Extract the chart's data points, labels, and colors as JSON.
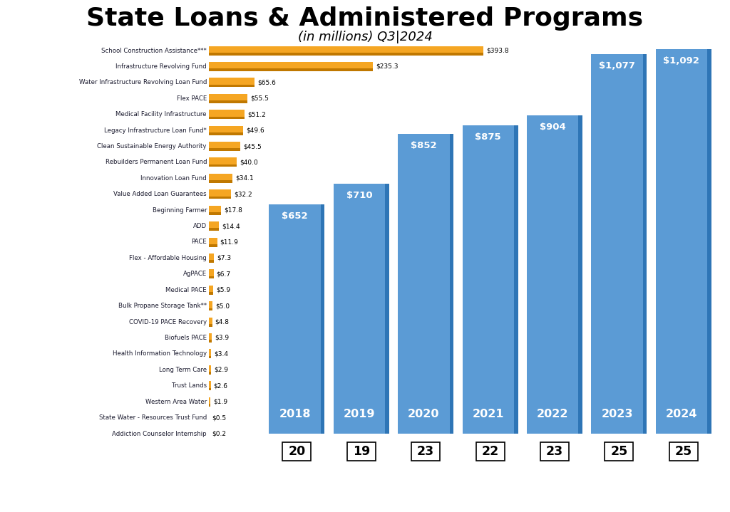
{
  "title": "State Loans & Administered Programs",
  "subtitle": "(in millions) Q3|2024",
  "bar_categories": [
    "2018",
    "2019",
    "2020",
    "2021",
    "2022",
    "2023",
    "2024"
  ],
  "bar_values": [
    652,
    710,
    852,
    875,
    904,
    1077,
    1092
  ],
  "bar_labels": [
    "$652",
    "$710",
    "$852",
    "$875",
    "$904",
    "$1,077",
    "$1,092"
  ],
  "bar_counts": [
    20,
    19,
    23,
    22,
    23,
    25,
    25
  ],
  "bar_color": "#5b9bd5",
  "bar_color_dark": "#2e75b6",
  "horizontal_labels": [
    "School Construction Assistance***",
    "Infrastructure Revolving Fund",
    "Water Infrastructure Revolving Loan Fund",
    "Flex PACE",
    "Medical Facility Infrastructure",
    "Legacy Infrastructure Loan Fund*",
    "Clean Sustainable Energy Authority",
    "Rebuilders Permanent Loan Fund",
    "Innovation Loan Fund",
    "Value Added Loan Guarantees",
    "Beginning Farmer",
    "ADD",
    "PACE",
    "Flex - Affordable Housing",
    "AgPACE",
    "Medical PACE",
    "Bulk Propane Storage Tank**",
    "COVID-19 PACE Recovery",
    "Biofuels PACE",
    "Health Information Technology",
    "Long Term Care",
    "Trust Lands",
    "Western Area Water",
    "State Water - Resources Trust Fund",
    "Addiction Counselor Internship"
  ],
  "horizontal_values": [
    393.8,
    235.3,
    65.6,
    55.5,
    51.2,
    49.6,
    45.5,
    40.0,
    34.1,
    32.2,
    17.8,
    14.4,
    11.9,
    7.3,
    6.7,
    5.9,
    5.0,
    4.8,
    3.9,
    3.4,
    2.9,
    2.6,
    1.9,
    0.5,
    0.2
  ],
  "horizontal_value_labels": [
    "$393.8",
    "$235.3",
    "$65.6",
    "$55.5",
    "$51.2",
    "$49.6",
    "$45.5",
    "$40.0",
    "$34.1",
    "$32.2",
    "$17.8",
    "$14.4",
    "$11.9",
    "$7.3",
    "$6.7",
    "$5.9",
    "$5.0",
    "$4.8",
    "$3.9",
    "$3.4",
    "$2.9",
    "$2.6",
    "$1.9",
    "$0.5",
    "$0.2"
  ],
  "horiz_bar_color": "#f5a623",
  "horiz_bar_color_dark": "#c07800",
  "background_color": "#ffffff",
  "title_fontsize": 26,
  "subtitle_fontsize": 13,
  "fig_width": 10.24,
  "fig_height": 7.19,
  "dpi": 100
}
